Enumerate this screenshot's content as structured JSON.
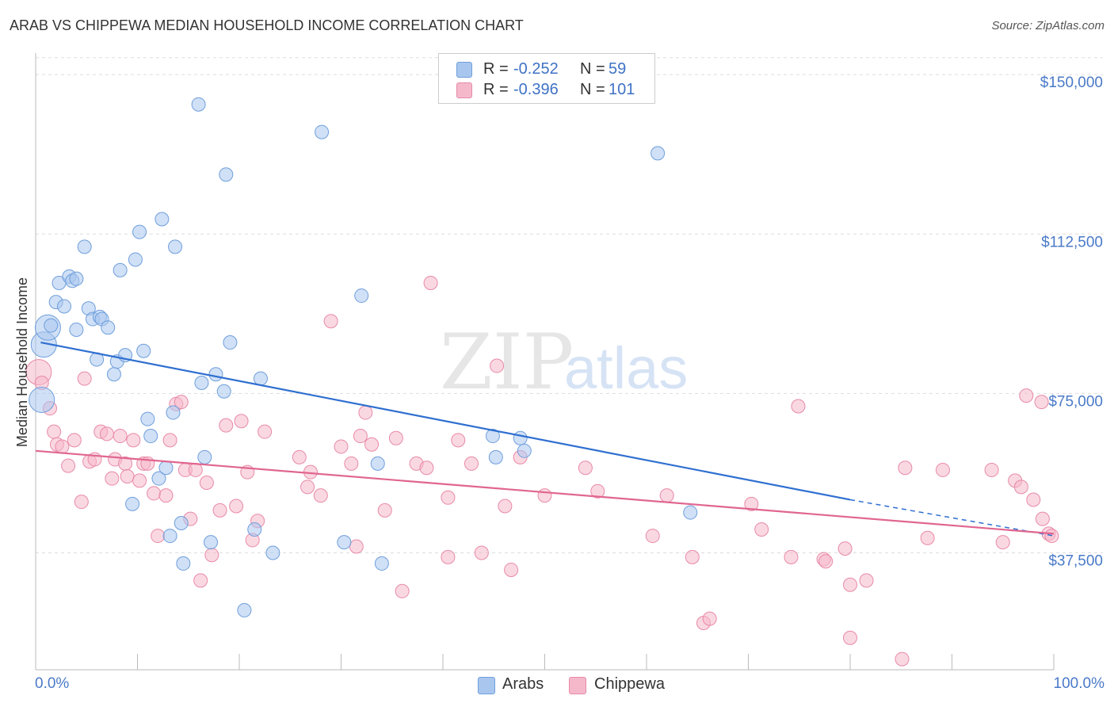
{
  "title": "ARAB VS CHIPPEWA MEDIAN HOUSEHOLD INCOME CORRELATION CHART",
  "source": "Source: ZipAtlas.com",
  "watermark": {
    "zip": "ZIP",
    "atlas": "atlas"
  },
  "legend": {
    "rows": [
      {
        "r_label": "R =",
        "r_value": "-0.252",
        "n_label": "N =",
        "n_value": "59"
      },
      {
        "r_label": "R =",
        "r_value": "-0.396",
        "n_label": "N =",
        "n_value": "101"
      }
    ]
  },
  "bottom_legend": {
    "arabs": "Arabs",
    "chippewa": "Chippewa"
  },
  "x_axis": {
    "min_label": "0.0%",
    "max_label": "100.0%"
  },
  "colors": {
    "arabs_fill": "#a9c6ee",
    "arabs_stroke": "#6f9fdc",
    "arabs_line": "#2f6fd0",
    "chippewa_fill": "#f5b8cb",
    "chippewa_stroke": "#e88aa8",
    "chippewa_line": "#e06690",
    "tick_text": "#4a7ac8",
    "grid": "#dddddd"
  },
  "chart_data": {
    "type": "scatter",
    "title": "ARAB VS CHIPPEWA MEDIAN HOUSEHOLD INCOME CORRELATION CHART",
    "xlabel": "",
    "ylabel": "Median Household Income",
    "xlim": [
      0,
      100
    ],
    "ylim": [
      10000,
      156000
    ],
    "y_ticks": [
      37500,
      75000,
      112500,
      150000
    ],
    "y_tick_labels": [
      "$37,500",
      "$75,000",
      "$112,500",
      "$150,000"
    ],
    "x_tick_labels": [
      "0.0%",
      "100.0%"
    ],
    "grid": true,
    "legend_position": "top-center",
    "series": [
      {
        "name": "Arabs",
        "points": [
          [
            0.6,
            73500,
            2
          ],
          [
            0.8,
            86500,
            2
          ],
          [
            1.2,
            90500,
            2
          ],
          [
            1.5,
            91000,
            1
          ],
          [
            2.0,
            96500,
            1
          ],
          [
            2.3,
            101000,
            1
          ],
          [
            2.8,
            95500,
            1
          ],
          [
            3.3,
            102500,
            1
          ],
          [
            3.6,
            101500,
            1
          ],
          [
            4.0,
            102000,
            1
          ],
          [
            4.0,
            90000,
            1
          ],
          [
            4.8,
            109500,
            1
          ],
          [
            5.2,
            95000,
            1
          ],
          [
            5.6,
            92500,
            1
          ],
          [
            6.0,
            83000,
            1
          ],
          [
            6.3,
            93000,
            1
          ],
          [
            6.5,
            92500,
            1
          ],
          [
            7.1,
            90500,
            1
          ],
          [
            7.7,
            79500,
            1
          ],
          [
            8.0,
            82500,
            1
          ],
          [
            8.3,
            104000,
            1
          ],
          [
            8.8,
            84000,
            1
          ],
          [
            9.5,
            49000,
            1
          ],
          [
            9.8,
            106500,
            1
          ],
          [
            10.2,
            113000,
            1
          ],
          [
            10.6,
            85000,
            1
          ],
          [
            11.0,
            69000,
            1
          ],
          [
            11.3,
            65000,
            1
          ],
          [
            12.1,
            55000,
            1
          ],
          [
            12.4,
            116000,
            1
          ],
          [
            12.8,
            57500,
            1
          ],
          [
            13.2,
            41500,
            1
          ],
          [
            13.5,
            70500,
            1
          ],
          [
            13.7,
            109500,
            1
          ],
          [
            14.3,
            44500,
            1
          ],
          [
            14.5,
            35000,
            1
          ],
          [
            16.0,
            143000,
            1
          ],
          [
            16.3,
            77500,
            1
          ],
          [
            16.6,
            60000,
            1
          ],
          [
            17.2,
            40000,
            1
          ],
          [
            17.7,
            79500,
            1
          ],
          [
            18.5,
            75500,
            1
          ],
          [
            18.7,
            126500,
            1
          ],
          [
            19.1,
            87000,
            1
          ],
          [
            20.5,
            24000,
            1
          ],
          [
            21.5,
            43000,
            1
          ],
          [
            22.1,
            78500,
            1
          ],
          [
            23.3,
            37500,
            1
          ],
          [
            28.1,
            136500,
            1
          ],
          [
            30.3,
            40000,
            1
          ],
          [
            32.0,
            98000,
            1
          ],
          [
            33.6,
            58500,
            1
          ],
          [
            34.0,
            35000,
            1
          ],
          [
            44.9,
            65000,
            1
          ],
          [
            45.2,
            60000,
            1
          ],
          [
            47.6,
            64500,
            1
          ],
          [
            48.0,
            61500,
            1
          ],
          [
            61.1,
            131500,
            1
          ],
          [
            64.3,
            47000,
            1
          ]
        ],
        "trend": {
          "x0": 0.5,
          "y0": 87000,
          "x1": 80,
          "y1": 50000,
          "dashed_to_x": 100,
          "dashed_to_y": 41500
        }
      },
      {
        "name": "Chippewa",
        "points": [
          [
            0.3,
            80000,
            2
          ],
          [
            0.6,
            77500,
            1
          ],
          [
            1.4,
            71500,
            1
          ],
          [
            1.8,
            66000,
            1
          ],
          [
            2.1,
            63000,
            1
          ],
          [
            2.6,
            62500,
            1
          ],
          [
            3.2,
            58000,
            1
          ],
          [
            3.8,
            64000,
            1
          ],
          [
            4.5,
            49500,
            1
          ],
          [
            4.8,
            78500,
            1
          ],
          [
            5.3,
            59000,
            1
          ],
          [
            5.8,
            59500,
            1
          ],
          [
            6.4,
            66000,
            1
          ],
          [
            7.0,
            65500,
            1
          ],
          [
            7.5,
            55000,
            1
          ],
          [
            7.8,
            59500,
            1
          ],
          [
            8.3,
            65000,
            1
          ],
          [
            8.8,
            58500,
            1
          ],
          [
            9.0,
            55500,
            1
          ],
          [
            9.6,
            64000,
            1
          ],
          [
            10.2,
            54500,
            1
          ],
          [
            10.6,
            58500,
            1
          ],
          [
            11.0,
            58500,
            1
          ],
          [
            11.6,
            51500,
            1
          ],
          [
            12.0,
            41500,
            1
          ],
          [
            12.8,
            51000,
            1
          ],
          [
            13.2,
            64000,
            1
          ],
          [
            13.8,
            72500,
            1
          ],
          [
            14.3,
            73000,
            1
          ],
          [
            14.7,
            57000,
            1
          ],
          [
            15.2,
            45500,
            1
          ],
          [
            15.7,
            57000,
            1
          ],
          [
            16.2,
            31000,
            1
          ],
          [
            16.8,
            54000,
            1
          ],
          [
            17.3,
            37000,
            1
          ],
          [
            18.1,
            47500,
            1
          ],
          [
            18.7,
            67500,
            1
          ],
          [
            19.7,
            48500,
            1
          ],
          [
            20.2,
            68500,
            1
          ],
          [
            20.8,
            56500,
            1
          ],
          [
            21.3,
            40500,
            1
          ],
          [
            21.8,
            45000,
            1
          ],
          [
            22.5,
            66000,
            1
          ],
          [
            25.9,
            60000,
            1
          ],
          [
            26.7,
            53000,
            1
          ],
          [
            27.0,
            56500,
            1
          ],
          [
            28.0,
            51000,
            1
          ],
          [
            29.0,
            92000,
            1
          ],
          [
            30.0,
            62500,
            1
          ],
          [
            31.0,
            58500,
            1
          ],
          [
            31.5,
            39000,
            1
          ],
          [
            31.9,
            65000,
            1
          ],
          [
            32.4,
            70500,
            1
          ],
          [
            33.0,
            63000,
            1
          ],
          [
            34.3,
            47500,
            1
          ],
          [
            35.4,
            64500,
            1
          ],
          [
            36.0,
            28500,
            1
          ],
          [
            37.4,
            58500,
            1
          ],
          [
            38.4,
            57500,
            1
          ],
          [
            38.8,
            101000,
            1
          ],
          [
            40.5,
            50500,
            1
          ],
          [
            40.5,
            36500,
            1
          ],
          [
            41.5,
            64000,
            1
          ],
          [
            42.8,
            58500,
            1
          ],
          [
            43.8,
            37500,
            1
          ],
          [
            45.3,
            81500,
            1
          ],
          [
            46.1,
            48500,
            1
          ],
          [
            46.7,
            33500,
            1
          ],
          [
            47.6,
            60000,
            1
          ],
          [
            50.0,
            51000,
            1
          ],
          [
            54.0,
            57500,
            1
          ],
          [
            55.2,
            52000,
            1
          ],
          [
            60.6,
            41500,
            1
          ],
          [
            62.0,
            51000,
            1
          ],
          [
            64.5,
            36500,
            1
          ],
          [
            65.6,
            21000,
            1
          ],
          [
            66.2,
            22000,
            1
          ],
          [
            70.3,
            49000,
            1
          ],
          [
            71.3,
            43000,
            1
          ],
          [
            74.2,
            36500,
            1
          ],
          [
            74.9,
            72000,
            1
          ],
          [
            77.4,
            36000,
            1
          ],
          [
            77.6,
            35500,
            1
          ],
          [
            79.5,
            38500,
            1
          ],
          [
            80.0,
            17500,
            1
          ],
          [
            80.0,
            30000,
            1
          ],
          [
            81.6,
            31000,
            1
          ],
          [
            85.1,
            12500,
            1
          ],
          [
            85.4,
            57500,
            1
          ],
          [
            87.6,
            41000,
            1
          ],
          [
            89.1,
            57000,
            1
          ],
          [
            93.9,
            57000,
            1
          ],
          [
            95.0,
            40000,
            1
          ],
          [
            96.2,
            54500,
            1
          ],
          [
            96.8,
            53000,
            1
          ],
          [
            97.3,
            74500,
            1
          ],
          [
            98.0,
            50000,
            1
          ],
          [
            98.8,
            73000,
            1
          ],
          [
            98.9,
            45500,
            1
          ],
          [
            99.5,
            42000,
            1
          ],
          [
            99.8,
            41500,
            1
          ]
        ],
        "trend": {
          "x0": 0,
          "y0": 61500,
          "x1": 100,
          "y1": 42000
        }
      }
    ]
  }
}
